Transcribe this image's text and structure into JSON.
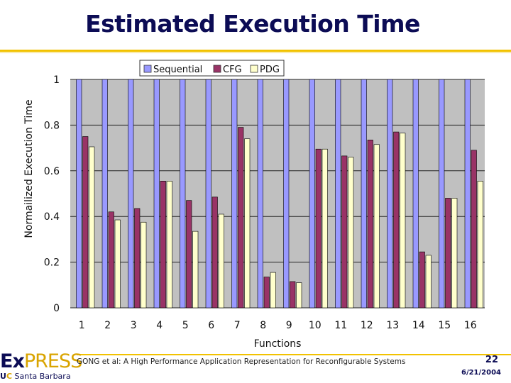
{
  "slide": {
    "title": "Estimated Execution Time",
    "footer": "GONG et al: A High Performance Application Representation for Reconfigurable Systems",
    "page_number": "22",
    "date": "6/21/2004",
    "logo": {
      "part1": "Ex",
      "part2": "PRESS",
      "sub_u": "U",
      "sub_c": "C",
      "sub_rest": " Santa Barbara"
    }
  },
  "colors": {
    "sequential": "#9999ff",
    "cfg": "#993366",
    "pdg": "#ffffcc",
    "plot_bg": "#c0c0c0",
    "accent": "#f2c200"
  },
  "chart_data": {
    "type": "bar",
    "title": "",
    "xlabel": "Functions",
    "ylabel": "Normailized Execution Time",
    "ylim": [
      0,
      1
    ],
    "yticks": [
      "0",
      "0.2",
      "0.4",
      "0.6",
      "0.8",
      "1"
    ],
    "grid": true,
    "legend_position": "top",
    "categories": [
      "1",
      "2",
      "3",
      "4",
      "5",
      "6",
      "7",
      "8",
      "9",
      "10",
      "11",
      "12",
      "13",
      "14",
      "15",
      "16"
    ],
    "series": [
      {
        "name": "Sequential",
        "values": [
          1,
          1,
          1,
          1,
          1,
          1,
          1,
          1,
          1,
          1,
          1,
          1,
          1,
          1,
          1,
          1
        ]
      },
      {
        "name": "CFG",
        "values": [
          0.75,
          0.42,
          0.435,
          0.555,
          0.47,
          0.485,
          0.79,
          0.135,
          0.115,
          0.695,
          0.665,
          0.735,
          0.77,
          0.245,
          0.48,
          0.69
        ]
      },
      {
        "name": "PDG",
        "values": [
          0.705,
          0.385,
          0.375,
          0.555,
          0.335,
          0.41,
          0.74,
          0.155,
          0.11,
          0.695,
          0.66,
          0.715,
          0.765,
          0.23,
          0.48,
          0.555
        ]
      }
    ]
  }
}
